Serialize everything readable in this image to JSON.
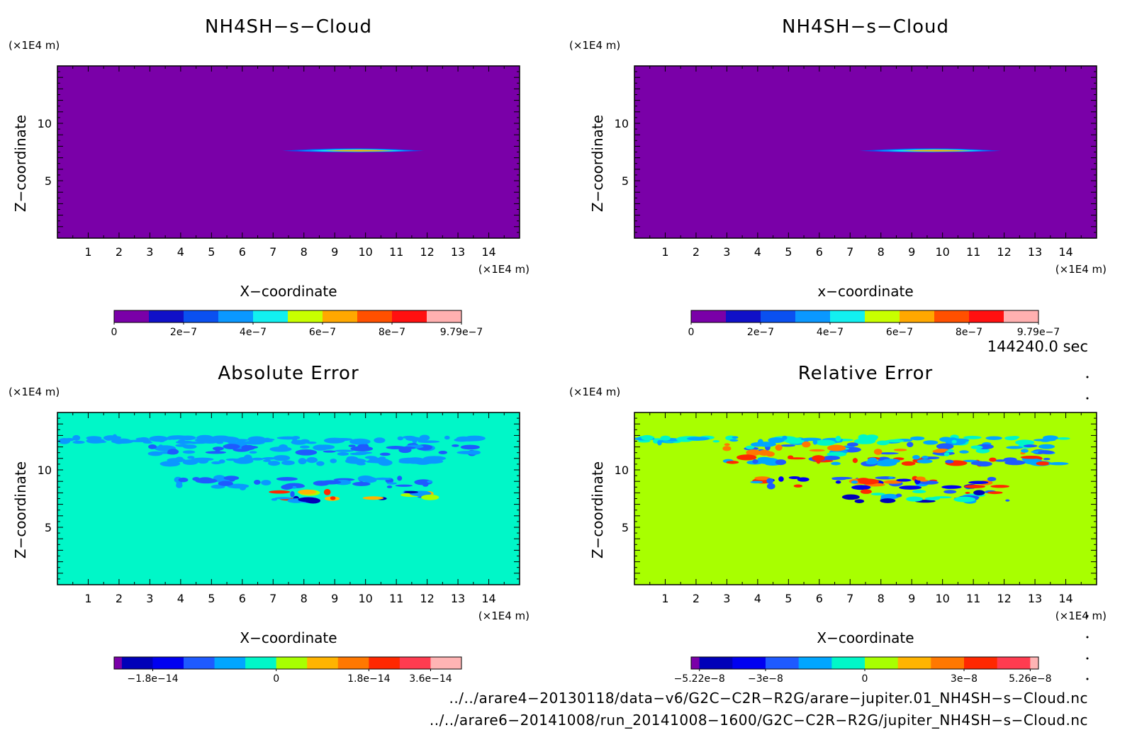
{
  "chart_data": [
    {
      "type": "heatmap",
      "title": "NH4SH−s−Cloud",
      "xlabel": "X−coordinate",
      "ylabel": "Z−coordinate",
      "x_unit": "(×1E4 m)",
      "y_unit": "(×1E4 m)",
      "x_ticks": [
        "1",
        "2",
        "3",
        "4",
        "5",
        "6",
        "7",
        "8",
        "9",
        "10",
        "11",
        "12",
        "13",
        "14"
      ],
      "y_ticks": [
        "5",
        "10"
      ],
      "xlim": [
        0,
        15
      ],
      "ylim": [
        0,
        15
      ],
      "background_color": "#7a00a8",
      "colorbar": {
        "colors": [
          "#7a00a8",
          "#1010c8",
          "#0a50f0",
          "#0a98ff",
          "#12f0f0",
          "#c8ff00",
          "#ffa800",
          "#ff5000",
          "#ff1010",
          "#ffb0b0"
        ],
        "labels": [
          "0",
          "2e−7",
          "4e−7",
          "6e−7",
          "8e−7",
          "9.79e−7"
        ],
        "label_positions": [
          0,
          2,
          4,
          6,
          8,
          10
        ]
      },
      "features": [
        {
          "x0": 7.3,
          "x1": 11.9,
          "z": 7.6,
          "thickness": 0.28,
          "colors": [
            "#0a50f0",
            "#0a98ff",
            "#12f0f0",
            "#ffa800"
          ]
        }
      ]
    },
    {
      "type": "heatmap",
      "title": "NH4SH−s−Cloud",
      "xlabel": "x−coordinate",
      "ylabel": "Z−coordinate",
      "x_unit": "(×1E4 m)",
      "y_unit": "(×1E4 m)",
      "x_ticks": [
        "1",
        "2",
        "3",
        "4",
        "5",
        "6",
        "7",
        "8",
        "9",
        "10",
        "11",
        "12",
        "13",
        "14"
      ],
      "y_ticks": [
        "5",
        "10"
      ],
      "xlim": [
        0,
        15
      ],
      "ylim": [
        0,
        15
      ],
      "background_color": "#7a00a8",
      "colorbar": {
        "colors": [
          "#7a00a8",
          "#1010c8",
          "#0a50f0",
          "#0a98ff",
          "#12f0f0",
          "#c8ff00",
          "#ffa800",
          "#ff5000",
          "#ff1010",
          "#ffb0b0"
        ],
        "labels": [
          "0",
          "2e−7",
          "4e−7",
          "6e−7",
          "8e−7",
          "9.79e−7"
        ],
        "label_positions": [
          0,
          2,
          4,
          6,
          8,
          10
        ]
      },
      "features": [
        {
          "x0": 7.3,
          "x1": 11.9,
          "z": 7.6,
          "thickness": 0.28,
          "colors": [
            "#0a50f0",
            "#0a98ff",
            "#12f0f0",
            "#ffa800"
          ]
        }
      ]
    },
    {
      "type": "heatmap",
      "title": "Absolute Error",
      "xlabel": "X−coordinate",
      "ylabel": "Z−coordinate",
      "x_unit": "(×1E4 m)",
      "y_unit": "(×1E4 m)",
      "x_ticks": [
        "1",
        "2",
        "3",
        "4",
        "5",
        "6",
        "7",
        "8",
        "9",
        "10",
        "11",
        "12",
        "13",
        "14"
      ],
      "y_ticks": [
        "5",
        "10"
      ],
      "xlim": [
        0,
        15
      ],
      "ylim": [
        0,
        15
      ],
      "background_color": "#00f7c8",
      "colorbar": {
        "colors": [
          "#7a00a8",
          "#0000b8",
          "#0000f0",
          "#1e5aff",
          "#00a6ff",
          "#00f7c8",
          "#a8ff00",
          "#ffb400",
          "#ff7800",
          "#ff2800",
          "#ff3c50",
          "#ffb4b4"
        ],
        "widths": [
          0.25,
          1,
          1,
          1,
          1,
          1,
          1,
          1,
          1,
          1,
          1,
          1
        ],
        "labels": [
          "−1.8e−14",
          "0",
          "1.8e−14",
          "3.6e−14"
        ],
        "label_positions": [
          1.25,
          5.25,
          8.25,
          10.25
        ]
      },
      "features": [
        {
          "x0": 0.2,
          "x1": 14.2,
          "z": 12.6,
          "thickness": 0.25,
          "colors": [
            "#0a98ff"
          ]
        },
        {
          "x0": 3.0,
          "x1": 13.8,
          "z": 11.8,
          "thickness": 0.45,
          "colors": [
            "#0a98ff",
            "#1e5aff"
          ]
        },
        {
          "x0": 3.5,
          "x1": 12.5,
          "z": 10.8,
          "thickness": 0.3,
          "colors": [
            "#0a98ff"
          ]
        },
        {
          "x0": 3.8,
          "x1": 12.2,
          "z": 8.9,
          "thickness": 0.45,
          "colors": [
            "#0a98ff",
            "#1e5aff"
          ]
        },
        {
          "x0": 7.0,
          "x1": 12.2,
          "z": 7.7,
          "thickness": 0.4,
          "colors": [
            "#0a98ff",
            "#1e5aff",
            "#0000b8",
            "#ffb400",
            "#a8ff00",
            "#ff2800"
          ]
        }
      ]
    },
    {
      "type": "heatmap",
      "title": "Relative Error",
      "xlabel": "X−coordinate",
      "ylabel": "Z−coordinate",
      "x_unit": "(×1E4 m)",
      "y_unit": "(×1E4 m)",
      "x_ticks": [
        "1",
        "2",
        "3",
        "4",
        "5",
        "6",
        "7",
        "8",
        "9",
        "10",
        "11",
        "12",
        "13",
        "14"
      ],
      "y_ticks": [
        "5",
        "10"
      ],
      "xlim": [
        0,
        15
      ],
      "ylim": [
        0,
        15
      ],
      "background_color": "#a8ff00",
      "colorbar": {
        "colors": [
          "#7a00a8",
          "#0000b8",
          "#0000f0",
          "#1e5aff",
          "#00a6ff",
          "#00f7c8",
          "#a8ff00",
          "#ffb400",
          "#ff7800",
          "#ff2800",
          "#ff3c50",
          "#ffb4b4"
        ],
        "widths": [
          0.25,
          1,
          1,
          1,
          1,
          1,
          1,
          1,
          1,
          1,
          1,
          0.25
        ],
        "labels": [
          "−5.22e−8",
          "−3e−8",
          "0",
          "3e−8",
          "5.26e−8"
        ],
        "label_positions": [
          0.25,
          2.25,
          5.25,
          8.25,
          10.25
        ]
      },
      "features": [
        {
          "x0": 0.2,
          "x1": 14.2,
          "z": 12.6,
          "thickness": 0.25,
          "colors": [
            "#00f7c8",
            "#00a6ff"
          ]
        },
        {
          "x0": 3.0,
          "x1": 13.8,
          "z": 11.8,
          "thickness": 0.45,
          "colors": [
            "#00a6ff",
            "#1e5aff",
            "#ff7800",
            "#00f7c8"
          ]
        },
        {
          "x0": 3.0,
          "x1": 13.8,
          "z": 10.8,
          "thickness": 0.3,
          "colors": [
            "#1e5aff",
            "#ff2800",
            "#00a6ff"
          ]
        },
        {
          "x0": 3.6,
          "x1": 12.5,
          "z": 8.9,
          "thickness": 0.45,
          "colors": [
            "#1e5aff",
            "#ff2800",
            "#0000f0",
            "#ff7800",
            "#00a6ff"
          ]
        },
        {
          "x0": 7.0,
          "x1": 12.2,
          "z": 7.7,
          "thickness": 0.45,
          "colors": [
            "#1e5aff",
            "#0000b8",
            "#ff2800",
            "#00a6ff",
            "#00f7c8"
          ]
        }
      ]
    }
  ],
  "annotations": {
    "time_label": "144240.0 sec",
    "file_1": "../../arare4−20130118/data−v6/G2C−C2R−R2G/arare−jupiter.01_NH4SH−s−Cloud.nc",
    "file_2": "../../arare6−20141008/run_20141008−1600/G2C−C2R−R2G/jupiter_NH4SH−s−Cloud.nc"
  }
}
